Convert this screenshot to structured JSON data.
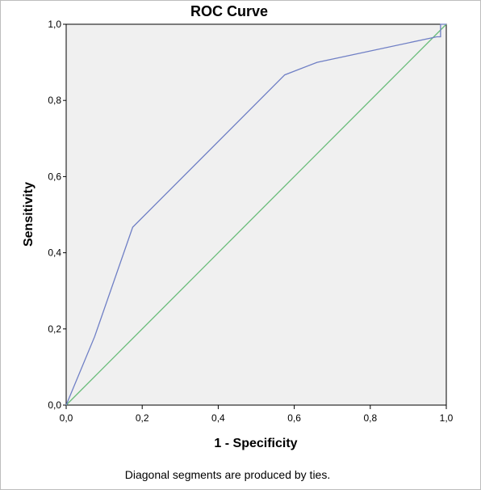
{
  "chart_data": {
    "type": "line",
    "title": "ROC Curve",
    "xlabel": "1 - Specificity",
    "ylabel": "Sensitivity",
    "xlim": [
      0,
      1
    ],
    "ylim": [
      0,
      1
    ],
    "x_tick_labels": [
      "0,0",
      "0,2",
      "0,4",
      "0,6",
      "0,8",
      "1,0"
    ],
    "y_tick_labels": [
      "0,0",
      "0,2",
      "0,4",
      "0,6",
      "0,8",
      "1,0"
    ],
    "tick_values": [
      0,
      0.2,
      0.4,
      0.6,
      0.8,
      1.0
    ],
    "grid": false,
    "plot_background": "#f0f0f0",
    "footnote": "Diagonal segments are produced by ties.",
    "series": [
      {
        "color": "#6f7fc5",
        "points": [
          [
            0,
            0
          ],
          [
            0.075,
            0.18
          ],
          [
            0.175,
            0.467
          ],
          [
            0.575,
            0.867
          ],
          [
            0.66,
            0.9
          ],
          [
            0.975,
            0.967
          ],
          [
            0.985,
            0.967
          ],
          [
            0.985,
            1.0
          ],
          [
            1.0,
            1.0
          ]
        ]
      },
      {
        "color": "#66bb77",
        "points": [
          [
            0,
            0
          ],
          [
            1,
            1
          ]
        ]
      }
    ]
  }
}
